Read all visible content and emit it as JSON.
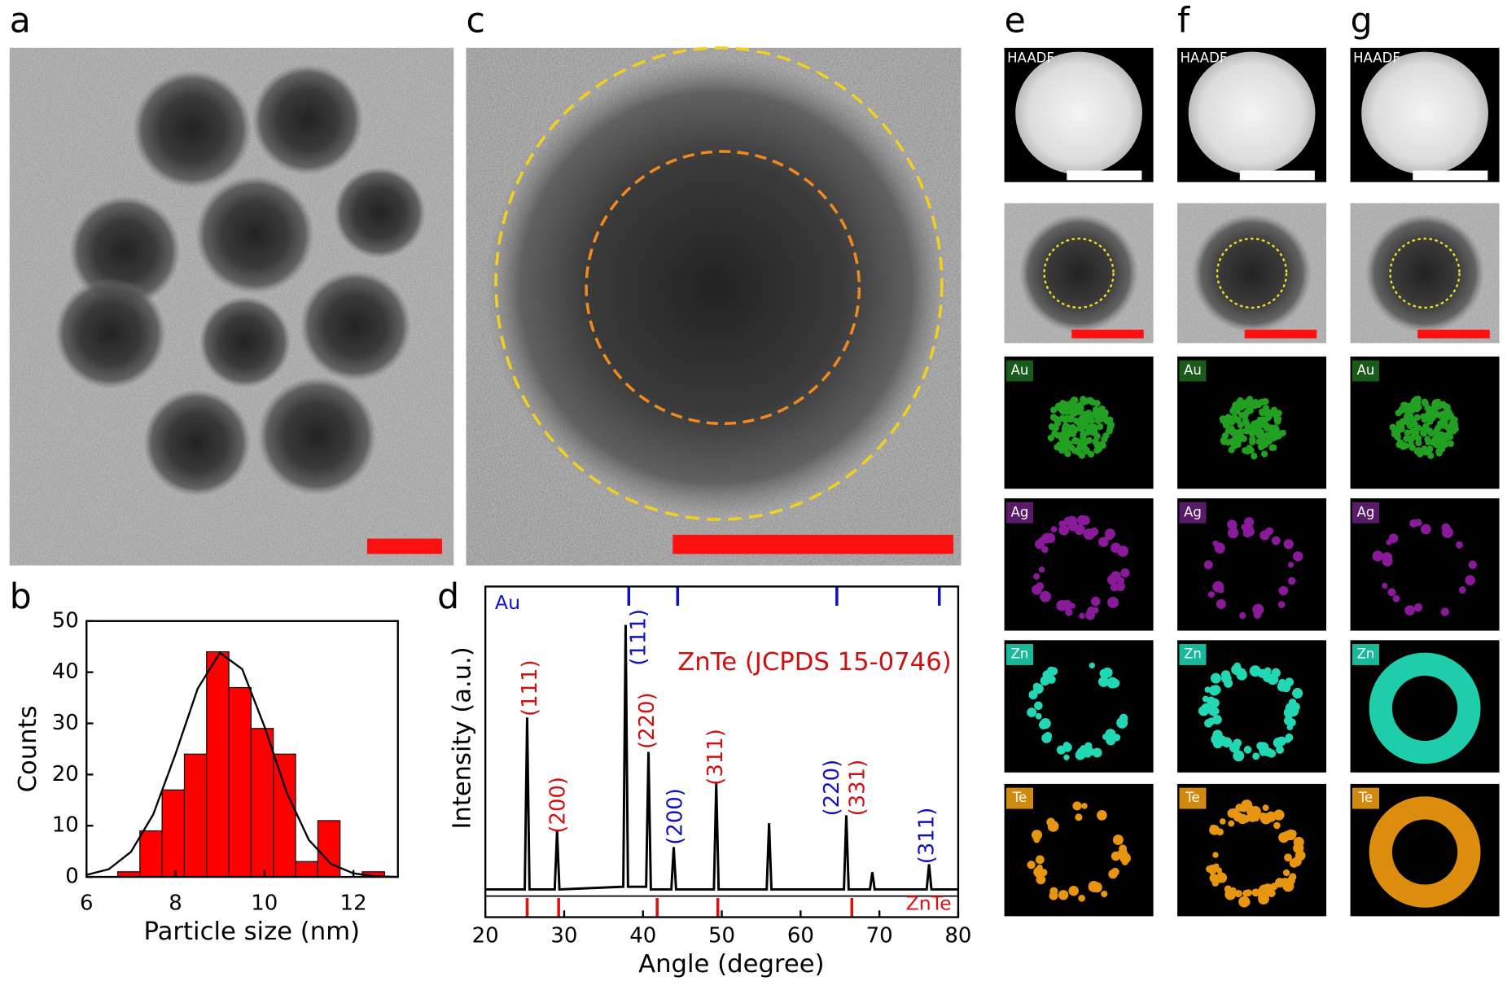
{
  "panel_labels": [
    "a",
    "b",
    "c",
    "d",
    "e",
    "f",
    "g"
  ],
  "chart_data": [
    {
      "type": "histogram",
      "x_label": "Particle size (nm)",
      "y_label": "Counts",
      "bins": [
        6.7,
        7.2,
        7.7,
        8.2,
        8.7,
        9.2,
        9.7,
        10.2,
        10.7,
        11.2,
        11.7,
        12.2,
        12.7
      ],
      "values": [
        1,
        9,
        17,
        24,
        44,
        37,
        29,
        24,
        3,
        11,
        0,
        1
      ],
      "color": "#ff0000",
      "fit": {
        "color": "#000000",
        "x": [
          6,
          6.5,
          7,
          7.5,
          8,
          8.5,
          9,
          9.5,
          10,
          10.5,
          11,
          11.5,
          12,
          12.5,
          13
        ],
        "values": [
          0.4,
          1.5,
          4.9,
          12.2,
          24.0,
          36.8,
          43.8,
          40.6,
          29.4,
          16.5,
          7.2,
          2.5,
          0.7,
          0.1,
          0.0
        ]
      },
      "xlim": [
        6,
        13
      ],
      "xticks": [
        6,
        8,
        10,
        12
      ],
      "ylim": [
        0,
        50
      ],
      "yticks": [
        0,
        10,
        20,
        30,
        40,
        50
      ]
    },
    {
      "type": "line",
      "x_label": "Angle (degree)",
      "y_label": "Intensity (a.u.)",
      "color": "#000000",
      "x": [
        20,
        25.0,
        25.3,
        25.6,
        28.8,
        29.1,
        29.4,
        37.5,
        37.8,
        38.1,
        40.4,
        40.7,
        41.0,
        43.6,
        43.9,
        44.2,
        49.0,
        49.3,
        49.6,
        55.7,
        56.0,
        56.3,
        65.5,
        65.8,
        66.1,
        68.8,
        69.1,
        69.4,
        76.0,
        76.3,
        76.6,
        80
      ],
      "values": [
        0,
        0,
        65,
        0,
        0,
        22,
        0,
        1,
        100,
        1,
        1,
        52,
        0,
        0,
        16,
        0,
        0,
        40,
        0,
        0,
        25,
        0,
        0,
        28,
        0,
        0,
        6.5,
        0,
        0,
        9.5,
        0,
        0
      ],
      "xlim": [
        20,
        80
      ],
      "xticks": [
        20,
        30,
        40,
        50,
        60,
        70,
        80
      ],
      "ylim": [
        -10.5,
        114.5
      ],
      "reference": [
        {
          "name": "Au",
          "color": "#1010c0",
          "positions": [
            38.2,
            44.4,
            64.6,
            77.6
          ]
        },
        {
          "name": "ZnTe",
          "color": "#e01010",
          "positions": [
            25.3,
            29.3,
            41.8,
            49.5,
            66.5
          ]
        }
      ],
      "note": {
        "text": "ZnTe (JCPDS 15-0746)",
        "color": "#d01010"
      },
      "annotations": [
        {
          "text": "(111)",
          "color": "#d01010"
        },
        {
          "text": "(200)",
          "color": "#d01010"
        },
        {
          "text": "(111)",
          "color": "#1010c0"
        },
        {
          "text": "(220)",
          "color": "#d01010"
        },
        {
          "text": "(200)",
          "color": "#1010c0"
        },
        {
          "text": "(311)",
          "color": "#d01010"
        },
        {
          "text": "(220)",
          "color": "#1010c0"
        },
        {
          "text": "(331)",
          "color": "#d01010"
        },
        {
          "text": "(311)",
          "color": "#1010c0"
        }
      ]
    }
  ],
  "columns": [
    {
      "haadf": "HAADF",
      "elements": [
        "Au",
        "Ag",
        "Zn",
        "Te"
      ]
    },
    {
      "haadf": "HAADF",
      "elements": [
        "Au",
        "Ag",
        "Zn",
        "Te"
      ]
    },
    {
      "haadf": "HAADF",
      "elements": [
        "Au",
        "Ag",
        "Zn",
        "Te"
      ]
    }
  ]
}
